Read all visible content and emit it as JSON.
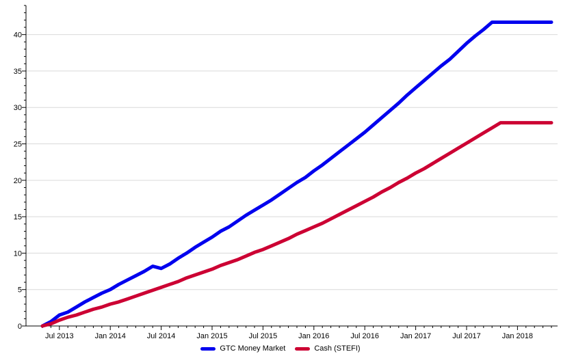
{
  "chart_data": {
    "type": "line",
    "title": "",
    "xlabel": "",
    "ylabel": "",
    "ylim": [
      0,
      44
    ],
    "y_ticks": [
      0,
      5,
      10,
      15,
      20,
      25,
      30,
      35,
      40
    ],
    "x_ticks": [
      "Jul 2013",
      "Jan 2014",
      "Jul 2014",
      "Jan 2015",
      "Jul 2015",
      "Jan 2016",
      "Jul 2016",
      "Jan 2017",
      "Jul 2017",
      "Jan 2018"
    ],
    "grid": true,
    "legend_position": "bottom-center",
    "x": [
      "2013-05",
      "2013-06",
      "2013-07",
      "2013-08",
      "2013-09",
      "2013-10",
      "2013-11",
      "2013-12",
      "2014-01",
      "2014-02",
      "2014-03",
      "2014-04",
      "2014-05",
      "2014-06",
      "2014-07",
      "2014-08",
      "2014-09",
      "2014-10",
      "2014-11",
      "2014-12",
      "2015-01",
      "2015-02",
      "2015-03",
      "2015-04",
      "2015-05",
      "2015-06",
      "2015-07",
      "2015-08",
      "2015-09",
      "2015-10",
      "2015-11",
      "2015-12",
      "2016-01",
      "2016-02",
      "2016-03",
      "2016-04",
      "2016-05",
      "2016-06",
      "2016-07",
      "2016-08",
      "2016-09",
      "2016-10",
      "2016-11",
      "2016-12",
      "2017-01",
      "2017-02",
      "2017-03",
      "2017-04",
      "2017-05",
      "2017-06",
      "2017-07",
      "2017-08",
      "2017-09",
      "2017-10",
      "2017-11",
      "2017-12",
      "2018-01",
      "2018-02",
      "2018-03",
      "2018-04",
      "2018-05"
    ],
    "series": [
      {
        "name": "GTC Money Market",
        "color": "#0000ee",
        "values": [
          0.0,
          0.6,
          1.5,
          1.9,
          2.6,
          3.3,
          3.9,
          4.5,
          5.0,
          5.7,
          6.3,
          6.9,
          7.5,
          8.2,
          7.9,
          8.5,
          9.3,
          10.0,
          10.8,
          11.5,
          12.2,
          13.0,
          13.6,
          14.4,
          15.2,
          15.9,
          16.6,
          17.3,
          18.1,
          18.9,
          19.7,
          20.4,
          21.3,
          22.1,
          23.0,
          23.9,
          24.8,
          25.7,
          26.6,
          27.6,
          28.6,
          29.6,
          30.6,
          31.7,
          32.7,
          33.7,
          34.7,
          35.7,
          36.6,
          37.7,
          38.8,
          39.8,
          40.7,
          41.7,
          41.7,
          41.7,
          41.7,
          41.7,
          41.7,
          41.7,
          41.7
        ]
      },
      {
        "name": "Cash (STEFI)",
        "color": "#cc0033",
        "values": [
          0.0,
          0.3,
          0.8,
          1.2,
          1.5,
          1.9,
          2.3,
          2.6,
          3.0,
          3.3,
          3.7,
          4.1,
          4.5,
          4.9,
          5.3,
          5.7,
          6.1,
          6.6,
          7.0,
          7.4,
          7.8,
          8.3,
          8.7,
          9.1,
          9.6,
          10.1,
          10.5,
          11.0,
          11.5,
          12.0,
          12.6,
          13.1,
          13.6,
          14.1,
          14.7,
          15.3,
          15.9,
          16.5,
          17.1,
          17.7,
          18.4,
          19.0,
          19.7,
          20.3,
          21.0,
          21.6,
          22.3,
          23.0,
          23.7,
          24.4,
          25.1,
          25.8,
          26.5,
          27.2,
          27.9,
          27.9,
          27.9,
          27.9,
          27.9,
          27.9,
          27.9
        ]
      }
    ]
  }
}
